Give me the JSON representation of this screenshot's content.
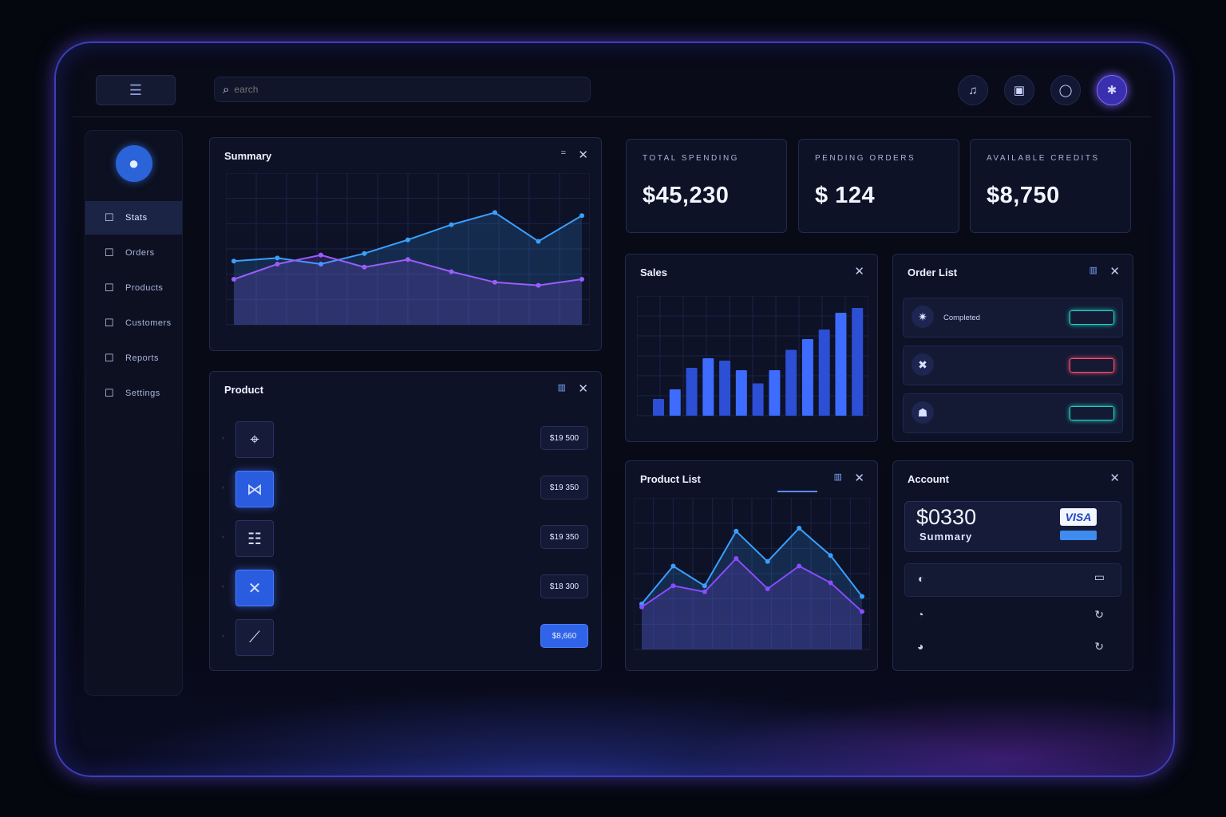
{
  "search": {
    "placeholder": "earch"
  },
  "sidebar": {
    "items": [
      {
        "label": "Stats",
        "icon": "dashboard-icon"
      },
      {
        "label": "Orders",
        "icon": "orders-icon"
      },
      {
        "label": "Products",
        "icon": "products-icon"
      },
      {
        "label": "Customers",
        "icon": "customers-icon"
      },
      {
        "label": "Reports",
        "icon": "reports-icon"
      },
      {
        "label": "Settings",
        "icon": "settings-icon"
      }
    ]
  },
  "summary": {
    "title": "Summary"
  },
  "stats": [
    {
      "label": "TOTAL SPENDING",
      "value": "$45,230"
    },
    {
      "label": "PENDING ORDERS",
      "value": "$ 124"
    },
    {
      "label": "AVAILABLE CREDITS",
      "value": "$8,750"
    }
  ],
  "product": {
    "title": "Product",
    "rows": [
      {
        "icon": "tag-icon",
        "price_button": "$19 500",
        "highlight": false
      },
      {
        "icon": "bowtie-icon",
        "price_button": "$19 350",
        "highlight": false
      },
      {
        "icon": "box-icon",
        "price_button": "$19 350",
        "highlight": false
      },
      {
        "icon": "crossed-tools-icon",
        "price_button": "$18 300",
        "highlight": false
      },
      {
        "icon": "pen-tool-icon",
        "price_button": "$8,660",
        "highlight": true
      }
    ]
  },
  "sales": {
    "title": "Sales"
  },
  "orderList": {
    "title": "Order List",
    "rows": [
      {
        "status": "Completed",
        "badge_color": "#22d3c5"
      },
      {
        "status": "",
        "badge_color": "#ff4d6d"
      },
      {
        "status": "",
        "badge_color": "#22d3c5"
      }
    ]
  },
  "productList": {
    "title": "Product List"
  },
  "account": {
    "title": "Account",
    "amount": "$0330",
    "summary": "Summary",
    "card_brand": "VISA"
  },
  "colors": {
    "accent": "#3b6cff",
    "purple": "#8a5cff",
    "bg": "#05070f"
  },
  "chart_data": [
    {
      "type": "line",
      "title": "Summary",
      "series": [
        {
          "values": [
            0.42,
            0.44,
            0.4,
            0.47,
            0.56,
            0.66,
            0.74,
            0.55,
            0.72
          ]
        },
        {
          "values": [
            0.3,
            0.4,
            0.46,
            0.38,
            0.43,
            0.35,
            0.28,
            0.26,
            0.3
          ]
        }
      ],
      "grid": true
    },
    {
      "type": "bar",
      "title": "Sales",
      "values": [
        14,
        22,
        40,
        48,
        46,
        38,
        27,
        38,
        55,
        64,
        72,
        86,
        90
      ]
    },
    {
      "type": "line",
      "title": "Product List",
      "series": [
        {
          "values": [
            0.3,
            0.55,
            0.42,
            0.78,
            0.58,
            0.8,
            0.62,
            0.35
          ]
        },
        {
          "values": [
            0.28,
            0.42,
            0.38,
            0.6,
            0.4,
            0.55,
            0.44,
            0.25
          ]
        }
      ],
      "grid": true
    }
  ]
}
